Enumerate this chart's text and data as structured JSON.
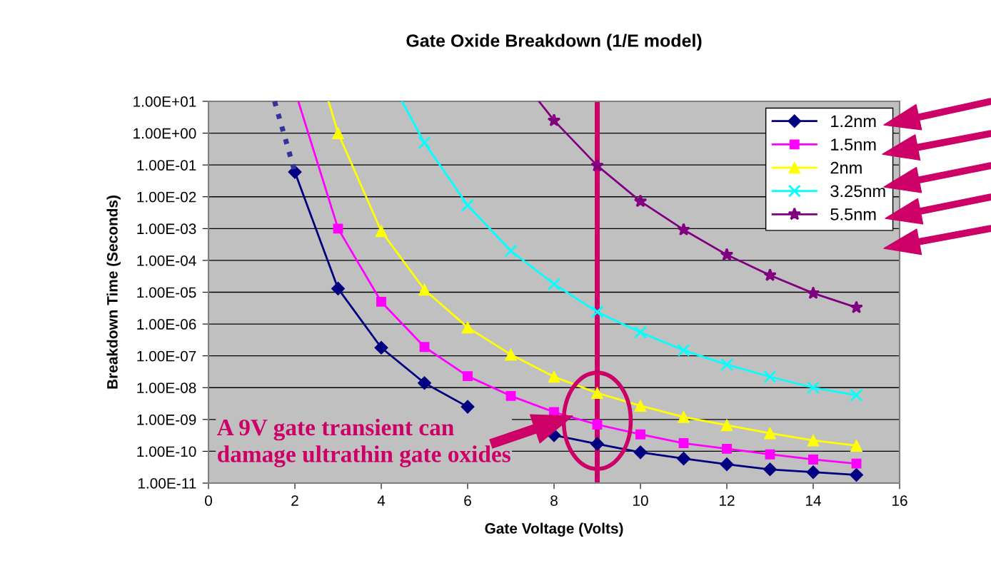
{
  "chart_data": {
    "type": "line",
    "title": "Gate Oxide Breakdown (1/E model)",
    "xlabel": "Gate Voltage (Volts)",
    "ylabel": "Breakdown Time (Seconds)",
    "x": [
      2,
      3,
      4,
      5,
      6,
      7,
      8,
      9,
      10,
      11,
      12,
      13,
      14,
      15
    ],
    "series": [
      {
        "name": "1.2nm",
        "color": "#000080",
        "marker": "diamond",
        "values": [
          0.06,
          1.3e-05,
          1.8e-07,
          1.4e-08,
          2.5e-09,
          null,
          3.2e-10,
          1.7e-10,
          9.3e-11,
          5.9e-11,
          3.9e-11,
          2.7e-11,
          2.2e-11,
          1.8e-11
        ]
      },
      {
        "name": "1.5nm",
        "color": "#ff00ff",
        "marker": "square",
        "values": [
          null,
          0.001,
          5e-06,
          1.9e-07,
          2.3e-08,
          5.5e-09,
          1.7e-09,
          6.9e-10,
          3.4e-10,
          1.8e-10,
          1.2e-10,
          8e-11,
          5.5e-11,
          4.1e-11
        ]
      },
      {
        "name": "2nm",
        "color": "#ffff00",
        "marker": "triangle",
        "values": [
          null,
          1,
          0.00083,
          1.2e-05,
          7.8e-07,
          1.1e-07,
          2.2e-08,
          6.8e-09,
          2.7e-09,
          1.2e-09,
          6.6e-10,
          3.7e-10,
          2.2e-10,
          1.5e-10
        ]
      },
      {
        "name": "3.25nm",
        "color": "#00ffff",
        "marker": "cross",
        "values": [
          null,
          null,
          null,
          0.5,
          0.0054,
          0.0002,
          1.8e-05,
          2.4e-06,
          5.5e-07,
          1.5e-07,
          5.3e-08,
          2.2e-08,
          1e-08,
          5.8e-09
        ]
      },
      {
        "name": "5.5nm",
        "color": "#800080",
        "marker": "star",
        "values": [
          null,
          null,
          null,
          null,
          null,
          null,
          2.5,
          0.095,
          0.0072,
          0.00092,
          0.00015,
          3.4e-05,
          9.3e-06,
          3.3e-06
        ]
      },
      {
        "color": "#333399",
        "marker": "none",
        "line_style": "dotted",
        "x": [
          1.53,
          2
        ],
        "values": [
          10,
          0.06
        ]
      },
      {
        "color": "#ff00ff",
        "marker": "none",
        "x": [
          2.08,
          3
        ],
        "values": [
          10,
          0.001
        ]
      },
      {
        "color": "#ffff00",
        "marker": "none",
        "x": [
          2.78,
          3
        ],
        "values": [
          10,
          1
        ]
      },
      {
        "color": "#00ffff",
        "marker": "none",
        "x": [
          4.48,
          5
        ],
        "values": [
          10,
          0.5
        ]
      },
      {
        "color": "#800080",
        "marker": "none",
        "x": [
          7.65,
          8
        ],
        "values": [
          10,
          2.5
        ]
      }
    ],
    "log": "y",
    "xlim": [
      0,
      16
    ],
    "xticks": [
      0,
      2,
      4,
      6,
      8,
      10,
      12,
      14,
      16
    ],
    "ylim": [
      1e-11,
      10
    ],
    "yticks": [
      {
        "value": 1e-11,
        "label": "1.00E-11"
      },
      {
        "value": 1e-10,
        "label": "1.00E-10"
      },
      {
        "value": 1e-09,
        "label": "1.00E-09"
      },
      {
        "value": 1e-08,
        "label": "1.00E-08"
      },
      {
        "value": 1e-07,
        "label": "1.00E-07"
      },
      {
        "value": 1e-06,
        "label": "1.00E-06"
      },
      {
        "value": 1e-05,
        "label": "1.00E-05"
      },
      {
        "value": 0.0001,
        "label": "1.00E-04"
      },
      {
        "value": 0.001,
        "label": "1.00E-03"
      },
      {
        "value": 0.01,
        "label": "1.00E-02"
      },
      {
        "value": 0.1,
        "label": "1.00E-01"
      },
      {
        "value": 1,
        "label": "1.00E+00"
      },
      {
        "value": 10,
        "label": "1.00E+01"
      }
    ],
    "grid": "y",
    "legend": "top right",
    "line_style": "solid",
    "ref_lines": [
      {
        "axis": "x",
        "value": 9,
        "color": "#cc0066"
      }
    ],
    "annotations": [
      "A 9V gate transient can\ndamage ultrathin gate oxides"
    ]
  }
}
